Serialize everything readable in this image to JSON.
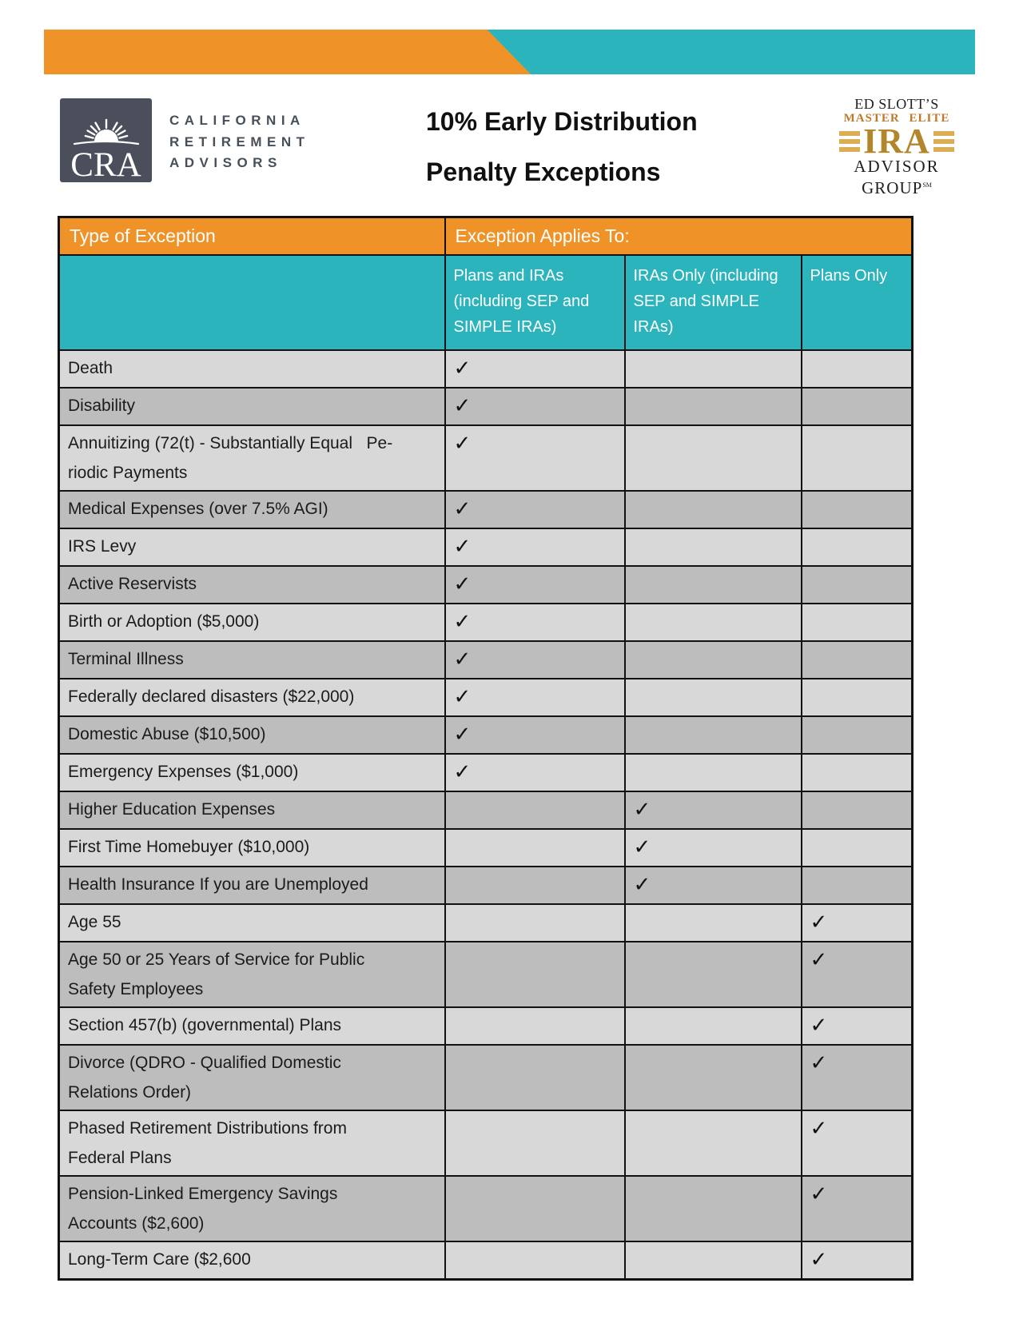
{
  "palette": {
    "orange": "#EF9329",
    "teal": "#2CB4BD",
    "row_light": "#D8D8D8",
    "row_dark": "#BDBDBD",
    "border": "#121212",
    "cra_slate": "#4A4F5B",
    "gold_dark": "#B3862C",
    "gold_light": "#DBAE55",
    "gold_text": "#BE7A2A"
  },
  "header": {
    "cra": {
      "acronym": "CRA",
      "wordmark_lines": [
        "CALIFORNIA",
        "RETIREMENT",
        "ADVISORS"
      ]
    },
    "title_line1": "10% Early Distribution",
    "title_line2": "Penalty Exceptions",
    "ed_slott": {
      "line1": "ED SLOTT’S",
      "line2": "MASTER ELITE",
      "line3": "IRA",
      "line4": "ADVISOR",
      "line5": "GROUP",
      "trademark": "SM"
    }
  },
  "table": {
    "header_col1": "Type of Exception",
    "header_span": "Exception Applies To:",
    "subheaders": [
      "Plans and IRAs (including SEP and SIMPLE IRAs)",
      "IRAs Only (including SEP and SIMPLE IRAs)",
      "Plans Only"
    ],
    "checkmark": "✓",
    "rows": [
      {
        "label": "Death",
        "applies": "plans_and_iras"
      },
      {
        "label": "Disability",
        "applies": "plans_and_iras"
      },
      {
        "label": "Annuitizing (72(t) - Substantially Equal   Pe-\nriodic Payments",
        "applies": "plans_and_iras"
      },
      {
        "label": "Medical Expenses (over 7.5% AGI)",
        "applies": "plans_and_iras"
      },
      {
        "label": "IRS Levy",
        "applies": "plans_and_iras"
      },
      {
        "label": "Active Reservists",
        "applies": "plans_and_iras"
      },
      {
        "label": "Birth or Adoption ($5,000)",
        "applies": "plans_and_iras"
      },
      {
        "label": "Terminal Illness",
        "applies": "plans_and_iras"
      },
      {
        "label": "Federally declared disasters ($22,000)",
        "applies": "plans_and_iras"
      },
      {
        "label": "Domestic Abuse ($10,500)",
        "applies": "plans_and_iras"
      },
      {
        "label": "Emergency Expenses ($1,000)",
        "applies": "plans_and_iras"
      },
      {
        "label": "Higher Education Expenses",
        "applies": "iras_only"
      },
      {
        "label": "First Time Homebuyer ($10,000)",
        "applies": "iras_only"
      },
      {
        "label": "Health Insurance If you are Unemployed",
        "applies": "iras_only"
      },
      {
        "label": "Age 55",
        "applies": "plans_only"
      },
      {
        "label": "Age 50 or 25 Years of Service for Public\nSafety Employees",
        "applies": "plans_only"
      },
      {
        "label": "Section 457(b) (governmental) Plans",
        "applies": "plans_only"
      },
      {
        "label": "Divorce (QDRO - Qualified Domestic\nRelations Order)",
        "applies": "plans_only"
      },
      {
        "label": "Phased Retirement Distributions from\nFederal Plans",
        "applies": "plans_only"
      },
      {
        "label": "Pension-Linked Emergency Savings\nAccounts ($2,600)",
        "applies": "plans_only"
      },
      {
        "label": "Long-Term Care ($2,600",
        "applies": "plans_only"
      }
    ]
  }
}
